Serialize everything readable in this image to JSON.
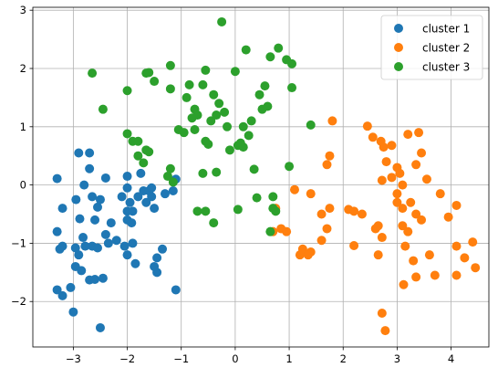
{
  "chart_data": {
    "type": "scatter",
    "title": "",
    "xlabel": "",
    "ylabel": "",
    "xlim": [
      -3.75,
      4.7
    ],
    "ylim": [
      -2.78,
      3.05
    ],
    "xticks": [
      -3,
      -2,
      -1,
      0,
      1,
      2,
      3,
      4
    ],
    "yticks": [
      -2,
      -1,
      0,
      1,
      2,
      3
    ],
    "grid": true,
    "legend_position": "top-right",
    "series": [
      {
        "name": "cluster 1",
        "color": "#1f77b4",
        "points": [
          [
            -3.3,
            0.11
          ],
          [
            -3.2,
            -0.4
          ],
          [
            -3.3,
            -0.8
          ],
          [
            -3.25,
            -1.1
          ],
          [
            -3.2,
            -1.05
          ],
          [
            -3.3,
            -1.8
          ],
          [
            -3.2,
            -1.9
          ],
          [
            -3.0,
            -2.18
          ],
          [
            -2.9,
            0.55
          ],
          [
            -2.8,
            0.0
          ],
          [
            -2.95,
            -0.25
          ],
          [
            -2.88,
            -0.58
          ],
          [
            -2.82,
            -0.9
          ],
          [
            -2.96,
            -1.08
          ],
          [
            -2.9,
            -1.2
          ],
          [
            -2.78,
            -1.05
          ],
          [
            -2.96,
            -1.4
          ],
          [
            -2.85,
            -1.47
          ],
          [
            -3.05,
            -1.76
          ],
          [
            -2.7,
            0.55
          ],
          [
            -2.7,
            0.28
          ],
          [
            -2.65,
            -0.2
          ],
          [
            -2.55,
            -0.38
          ],
          [
            -2.6,
            -0.6
          ],
          [
            -2.65,
            -1.05
          ],
          [
            -2.55,
            -1.08
          ],
          [
            -2.7,
            -1.63
          ],
          [
            -2.6,
            -1.62
          ],
          [
            -2.5,
            -2.45
          ],
          [
            -2.4,
            0.12
          ],
          [
            -2.3,
            -0.65
          ],
          [
            -2.4,
            -0.85
          ],
          [
            -2.35,
            -1.0
          ],
          [
            -2.2,
            -0.95
          ],
          [
            -2.5,
            -0.25
          ],
          [
            -2.45,
            -1.6
          ],
          [
            -2.0,
            0.15
          ],
          [
            -2.0,
            -0.05
          ],
          [
            -2.0,
            -0.45
          ],
          [
            -2.0,
            -0.6
          ],
          [
            -1.9,
            -0.45
          ],
          [
            -1.92,
            -0.65
          ],
          [
            -1.9,
            -1.0
          ],
          [
            -2.05,
            -1.05
          ],
          [
            -2.0,
            -1.2
          ],
          [
            -1.85,
            -1.35
          ],
          [
            -1.95,
            -0.3
          ],
          [
            -1.8,
            -0.2
          ],
          [
            -1.75,
            0.2
          ],
          [
            -1.7,
            -0.1
          ],
          [
            -1.6,
            -0.1
          ],
          [
            -1.55,
            -0.2
          ],
          [
            -1.5,
            -0.4
          ],
          [
            -1.45,
            -1.25
          ],
          [
            -1.45,
            -1.5
          ],
          [
            -1.5,
            -1.4
          ],
          [
            -1.35,
            -1.1
          ],
          [
            -1.3,
            -0.15
          ],
          [
            -1.15,
            -0.1
          ],
          [
            -1.1,
            -1.8
          ],
          [
            -1.1,
            0.1
          ],
          [
            -1.65,
            -0.3
          ],
          [
            -2.1,
            -0.2
          ],
          [
            -1.55,
            -0.05
          ]
        ]
      },
      {
        "name": "cluster 2",
        "color": "#ff7f0e",
        "points": [
          [
            0.7,
            -0.8
          ],
          [
            0.75,
            -0.4
          ],
          [
            0.85,
            -0.75
          ],
          [
            0.95,
            -0.8
          ],
          [
            1.1,
            -0.08
          ],
          [
            1.2,
            -1.2
          ],
          [
            1.25,
            -1.1
          ],
          [
            1.35,
            -1.2
          ],
          [
            1.4,
            -0.15
          ],
          [
            1.6,
            -0.95
          ],
          [
            1.7,
            -0.75
          ],
          [
            1.8,
            1.1
          ],
          [
            1.75,
            0.5
          ],
          [
            1.7,
            0.35
          ],
          [
            1.75,
            -0.4
          ],
          [
            1.6,
            -0.5
          ],
          [
            1.4,
            -1.15
          ],
          [
            2.1,
            -0.42
          ],
          [
            2.2,
            -0.45
          ],
          [
            2.2,
            -1.04
          ],
          [
            2.35,
            -0.5
          ],
          [
            2.45,
            1.01
          ],
          [
            2.6,
            -0.75
          ],
          [
            2.55,
            0.82
          ],
          [
            2.7,
            0.75
          ],
          [
            2.75,
            0.65
          ],
          [
            2.8,
            0.4
          ],
          [
            2.72,
            0.08
          ],
          [
            2.65,
            -0.7
          ],
          [
            2.72,
            -0.9
          ],
          [
            2.65,
            -1.2
          ],
          [
            2.72,
            -2.2
          ],
          [
            2.78,
            -2.5
          ],
          [
            2.9,
            0.13
          ],
          [
            3.0,
            -0.15
          ],
          [
            3.0,
            -0.3
          ],
          [
            3.0,
            0.3
          ],
          [
            3.05,
            0.2
          ],
          [
            3.1,
            0.0
          ],
          [
            3.1,
            -0.4
          ],
          [
            3.1,
            -0.7
          ],
          [
            3.15,
            -1.05
          ],
          [
            3.12,
            -1.71
          ],
          [
            3.2,
            0.87
          ],
          [
            3.2,
            -0.8
          ],
          [
            3.25,
            -0.3
          ],
          [
            3.35,
            -0.5
          ],
          [
            3.3,
            -1.3
          ],
          [
            3.35,
            -1.58
          ],
          [
            3.4,
            0.9
          ],
          [
            3.45,
            0.55
          ],
          [
            3.45,
            -0.6
          ],
          [
            3.55,
            0.1
          ],
          [
            3.6,
            -1.2
          ],
          [
            3.7,
            -1.55
          ],
          [
            3.8,
            -0.15
          ],
          [
            3.95,
            -0.55
          ],
          [
            4.1,
            -0.35
          ],
          [
            4.1,
            -1.05
          ],
          [
            4.1,
            -1.55
          ],
          [
            4.25,
            -1.25
          ],
          [
            4.4,
            -0.98
          ],
          [
            4.45,
            -1.42
          ],
          [
            3.35,
            0.35
          ],
          [
            2.9,
            0.68
          ]
        ]
      },
      {
        "name": "cluster 3",
        "color": "#2ca02c",
        "points": [
          [
            -2.65,
            1.92
          ],
          [
            -2.45,
            1.3
          ],
          [
            -2.0,
            1.62
          ],
          [
            -1.9,
            0.75
          ],
          [
            -2.0,
            0.88
          ],
          [
            -1.8,
            0.75
          ],
          [
            -1.8,
            0.5
          ],
          [
            -1.7,
            0.38
          ],
          [
            -1.65,
            0.6
          ],
          [
            -1.65,
            1.92
          ],
          [
            -1.6,
            1.93
          ],
          [
            -1.5,
            1.78
          ],
          [
            -1.25,
            0.15
          ],
          [
            -1.2,
            0.28
          ],
          [
            -1.15,
            0.05
          ],
          [
            -1.2,
            1.65
          ],
          [
            -1.2,
            2.05
          ],
          [
            -1.05,
            0.95
          ],
          [
            -0.95,
            0.9
          ],
          [
            -0.85,
            1.72
          ],
          [
            -0.8,
            1.15
          ],
          [
            -0.75,
            0.95
          ],
          [
            -0.75,
            1.3
          ],
          [
            -0.7,
            1.2
          ],
          [
            -0.7,
            -0.45
          ],
          [
            -0.6,
            1.72
          ],
          [
            -0.55,
            1.97
          ],
          [
            -0.55,
            0.75
          ],
          [
            -0.5,
            0.7
          ],
          [
            -0.45,
            1.1
          ],
          [
            -0.4,
            1.55
          ],
          [
            -0.35,
            1.2
          ],
          [
            -0.3,
            1.4
          ],
          [
            -0.25,
            2.8
          ],
          [
            -0.2,
            1.25
          ],
          [
            -0.15,
            1.0
          ],
          [
            -0.1,
            0.6
          ],
          [
            0.0,
            1.95
          ],
          [
            0.05,
            0.68
          ],
          [
            0.1,
            0.72
          ],
          [
            0.15,
            0.65
          ],
          [
            0.15,
            1.0
          ],
          [
            0.2,
            2.32
          ],
          [
            0.25,
            0.85
          ],
          [
            0.3,
            1.1
          ],
          [
            0.35,
            0.27
          ],
          [
            0.4,
            -0.22
          ],
          [
            0.45,
            1.55
          ],
          [
            0.5,
            1.3
          ],
          [
            0.55,
            1.7
          ],
          [
            0.6,
            1.35
          ],
          [
            0.65,
            2.2
          ],
          [
            0.7,
            -0.2
          ],
          [
            0.7,
            -0.4
          ],
          [
            0.75,
            -0.45
          ],
          [
            0.8,
            2.35
          ],
          [
            0.95,
            2.15
          ],
          [
            1.0,
            0.32
          ],
          [
            1.05,
            1.67
          ],
          [
            1.05,
            2.08
          ],
          [
            1.4,
            1.03
          ],
          [
            -0.6,
            0.2
          ],
          [
            -0.35,
            0.22
          ],
          [
            -0.55,
            -0.45
          ],
          [
            -0.4,
            -0.65
          ],
          [
            0.05,
            -0.42
          ],
          [
            0.65,
            -0.8
          ],
          [
            -1.6,
            0.57
          ],
          [
            -0.9,
            1.5
          ]
        ]
      }
    ]
  }
}
